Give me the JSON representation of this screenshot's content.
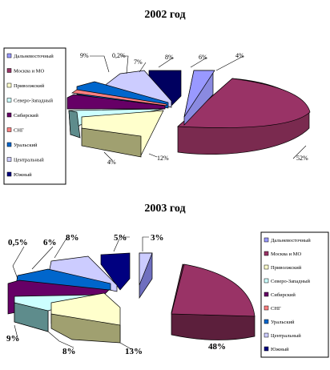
{
  "chart_data": [
    {
      "type": "pie",
      "title": "2002 год",
      "legend_position": "left",
      "labels_visible": [
        "9%",
        "0,2%",
        "7%",
        "8%",
        "6%",
        "4%",
        "52%",
        "12%",
        "4%"
      ],
      "legend": [
        {
          "name": "Дальневосточный",
          "color": "#9999ff"
        },
        {
          "name": "Москва и МО",
          "color": "#993366"
        },
        {
          "name": "Приволжский",
          "color": "#ffffcc"
        },
        {
          "name": "Северо-Западный",
          "color": "#ccffff"
        },
        {
          "name": "Сибирский",
          "color": "#660066"
        },
        {
          "name": "СНГ",
          "color": "#ff8080"
        },
        {
          "name": "Уральский",
          "color": "#0066cc"
        },
        {
          "name": "Центральный",
          "color": "#ccccff"
        },
        {
          "name": "Южный",
          "color": "#000080"
        }
      ]
    },
    {
      "type": "pie",
      "title": "2003 год",
      "legend_position": "right",
      "labels_visible": [
        "0,5%",
        "6%",
        "8%",
        "5%",
        "3%",
        "48%",
        "13%",
        "8%",
        "9%"
      ],
      "legend": [
        {
          "name": "Дальневосточный",
          "color": "#9999ff"
        },
        {
          "name": "Москва и МО",
          "color": "#993366"
        },
        {
          "name": "Приволжский",
          "color": "#ffffcc"
        },
        {
          "name": "Северо-Западный",
          "color": "#ccffff"
        },
        {
          "name": "Сибирский",
          "color": "#660066"
        },
        {
          "name": "СНГ",
          "color": "#ff8080"
        },
        {
          "name": "Уральский",
          "color": "#0066cc"
        },
        {
          "name": "Центральный",
          "color": "#ccccff"
        },
        {
          "name": "Южный",
          "color": "#000080"
        }
      ]
    }
  ]
}
